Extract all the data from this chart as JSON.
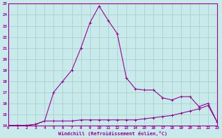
{
  "xlabel": "Windchill (Refroidissement éolien,°C)",
  "background_color": "#c8eaea",
  "grid_color": "#aad0d0",
  "line_color": "#990099",
  "xlim": [
    0,
    23
  ],
  "ylim": [
    14,
    25
  ],
  "xticks": [
    0,
    1,
    2,
    3,
    4,
    5,
    6,
    7,
    8,
    9,
    10,
    11,
    12,
    13,
    14,
    15,
    16,
    17,
    18,
    19,
    20,
    21,
    22,
    23
  ],
  "yticks": [
    14,
    15,
    16,
    17,
    18,
    19,
    20,
    21,
    22,
    23,
    24,
    25
  ],
  "series1_x": [
    0,
    1,
    2,
    3,
    4,
    5,
    6,
    7,
    8,
    9,
    10,
    11,
    12,
    13,
    14,
    15,
    16,
    17,
    18,
    19,
    20,
    21,
    22,
    23
  ],
  "series1_y": [
    14.0,
    14.0,
    14.0,
    14.1,
    14.4,
    14.4,
    14.4,
    14.4,
    14.5,
    14.5,
    14.5,
    14.5,
    14.5,
    14.5,
    14.5,
    14.6,
    14.7,
    14.8,
    14.9,
    15.1,
    15.3,
    15.5,
    15.8,
    14.3
  ],
  "series2_x": [
    0,
    1,
    2,
    3,
    4,
    5,
    6,
    7,
    8,
    9,
    10,
    11,
    12,
    13,
    14,
    15,
    16,
    17,
    18,
    19,
    20,
    21,
    22,
    23
  ],
  "series2_y": [
    14.0,
    14.0,
    14.0,
    14.1,
    14.4,
    17.0,
    18.0,
    19.0,
    21.0,
    23.3,
    24.8,
    23.5,
    22.3,
    18.3,
    17.3,
    17.2,
    17.2,
    16.5,
    16.3,
    16.6,
    16.6,
    15.7,
    16.0,
    14.3
  ]
}
